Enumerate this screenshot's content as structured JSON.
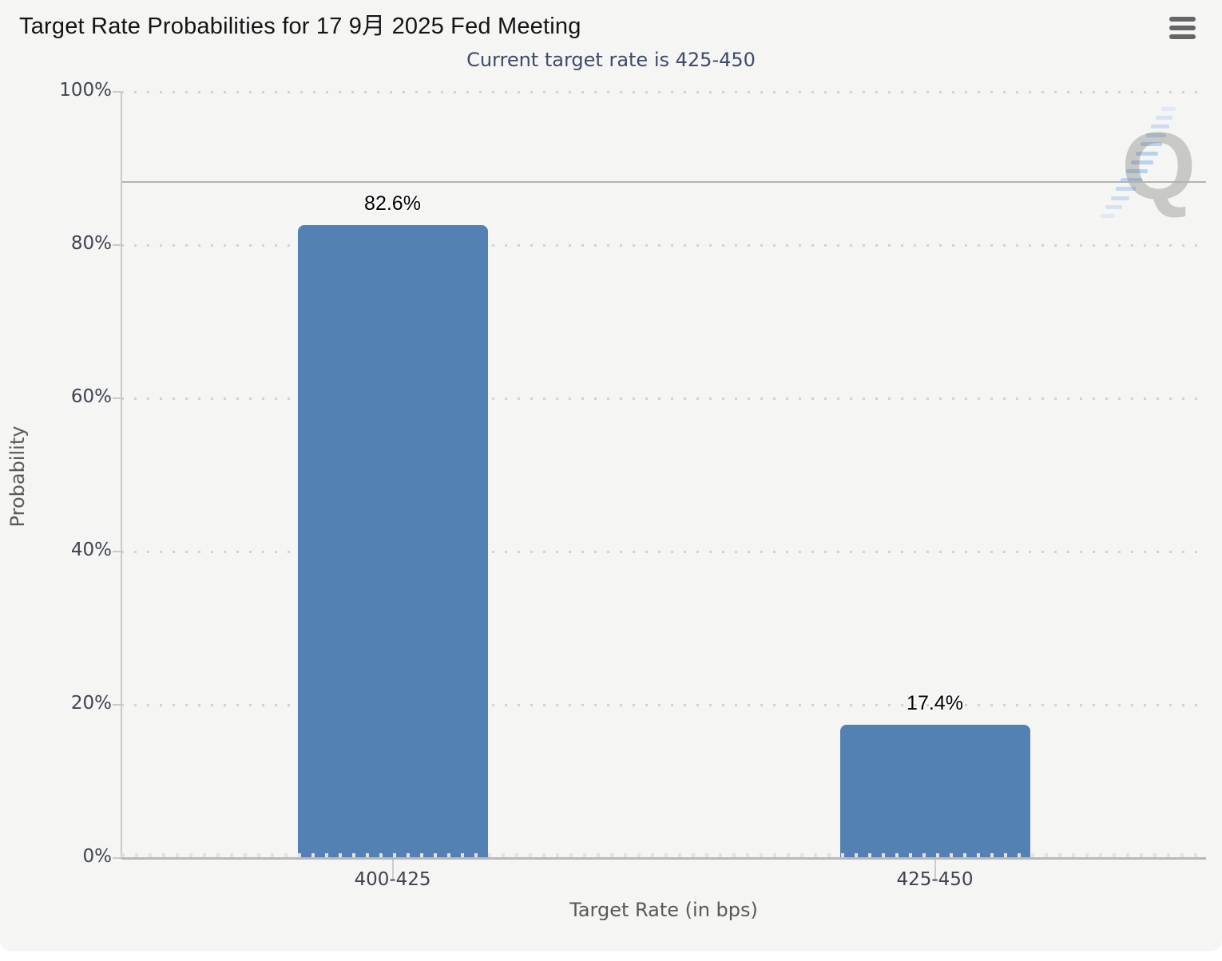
{
  "chart": {
    "menu_icon": "hamburger-icon",
    "watermark_letter": "Q",
    "background_color": "#f5f5f4",
    "subtitle_color": "#3e4a66"
  },
  "chart_data": {
    "type": "bar",
    "title": "Target Rate Probabilities for 17 9月 2025 Fed Meeting",
    "subtitle": "Current target rate is 425-450",
    "categories": [
      "400-425",
      "425-450"
    ],
    "values": [
      82.6,
      17.4
    ],
    "value_labels": [
      "82.6%",
      "17.4%"
    ],
    "xlabel": "Target Rate (in bps)",
    "ylabel": "Probability",
    "ylim": [
      0,
      100
    ],
    "ytick_step": 20,
    "ytick_labels": [
      "0%",
      "20%",
      "40%",
      "60%",
      "80%",
      "100%"
    ],
    "grid_style": "dotted horizontal",
    "legend": "none",
    "bar_color": "#5381b4",
    "reference_line_pct": 88.2
  }
}
